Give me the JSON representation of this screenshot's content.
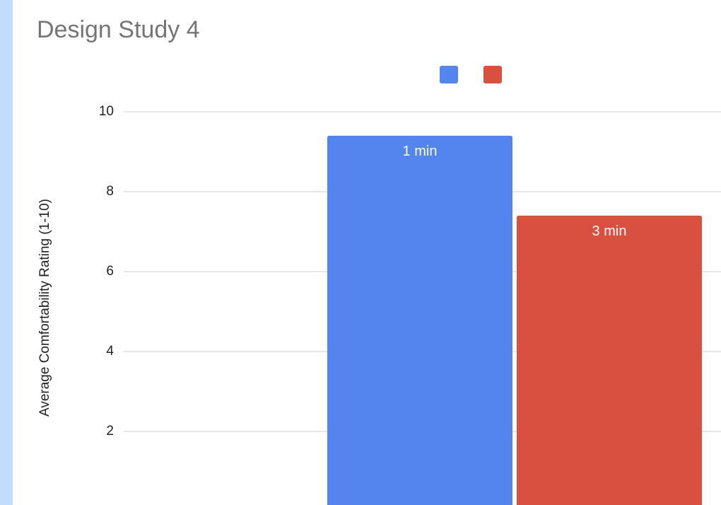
{
  "chart_data": {
    "type": "bar",
    "title": "Design Study 4",
    "y_label": "Average Comfortability Rating (1-10)",
    "series": [
      {
        "name": "1 min",
        "color": "#5484ed",
        "values": [
          9.4
        ]
      },
      {
        "name": "3 min",
        "color": "#d95040",
        "values": [
          7.4
        ]
      }
    ],
    "ylim": [
      0,
      10
    ],
    "yticks": [
      0,
      2,
      4,
      6,
      8,
      10
    ],
    "grid": true,
    "legend": "top"
  }
}
